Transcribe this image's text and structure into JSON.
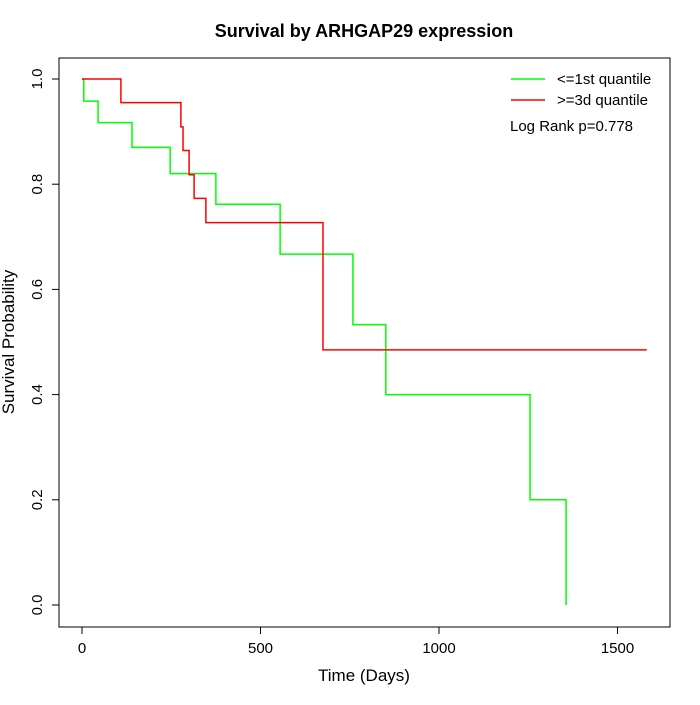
{
  "chart_data": {
    "type": "line",
    "subtype": "kaplan-meier step",
    "title": "Survival by ARHGAP29 expression",
    "xlabel": "Time (Days)",
    "ylabel": "Survival Probability",
    "xlim": [
      0,
      1500
    ],
    "ylim": [
      0,
      1
    ],
    "xticks": [
      "0",
      "500",
      "1000",
      "1500"
    ],
    "yticks": [
      "0.0",
      "0.2",
      "0.4",
      "0.6",
      "0.8",
      "1.0"
    ],
    "grid": false,
    "legend_position": "top-right",
    "annotation": "Log Rank p=0.778",
    "series": [
      {
        "name": "<=1st quantile",
        "color": "#00ff00",
        "x": [
          0,
          5,
          45,
          140,
          247,
          375,
          555,
          759,
          851,
          1255,
          1356
        ],
        "y": [
          1.0,
          0.958,
          0.917,
          0.87,
          0.82,
          0.762,
          0.667,
          0.533,
          0.4,
          0.2,
          0.0
        ]
      },
      {
        "name": ">=3d quantile",
        "color": "#ff0000",
        "x": [
          0,
          109,
          277,
          283,
          300,
          314,
          347,
          675,
          1582
        ],
        "y": [
          1.0,
          0.955,
          0.909,
          0.864,
          0.818,
          0.773,
          0.727,
          0.485,
          0.485
        ]
      }
    ]
  }
}
